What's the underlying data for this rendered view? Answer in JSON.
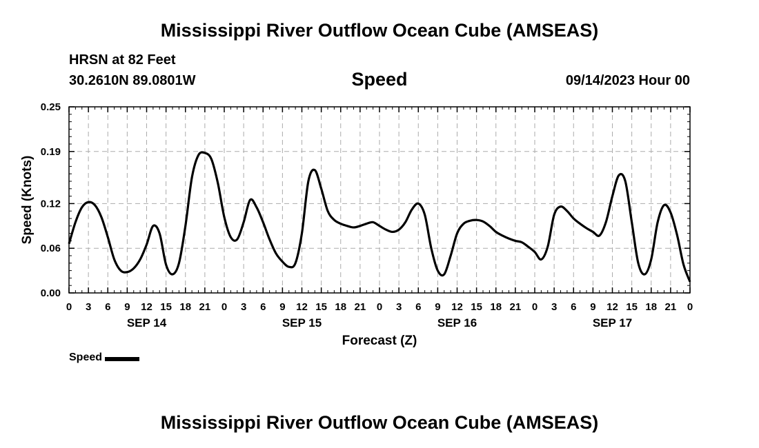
{
  "header": {
    "title": "Mississippi River Outflow Ocean Cube (AMSEAS)",
    "station": "HRSN at 82 Feet",
    "coords": "30.2610N  89.0801W",
    "variable": "Speed",
    "date": "09/14/2023 Hour 00"
  },
  "footer": {
    "title": "Mississippi River Outflow Ocean Cube (AMSEAS)"
  },
  "legend": {
    "label": "Speed",
    "color": "#000000"
  },
  "chart_data": {
    "type": "line",
    "title": "Speed",
    "xlabel": "Forecast (Z)",
    "ylabel": "Speed (Knots)",
    "xlim": [
      0,
      96
    ],
    "ylim": [
      0,
      0.25
    ],
    "yticks": [
      0.0,
      0.06,
      0.12,
      0.19,
      0.25
    ],
    "ytick_labels": [
      "0.00",
      "0.06",
      "0.12",
      "0.19",
      "0.25"
    ],
    "xticks": [
      0,
      3,
      6,
      9,
      12,
      15,
      18,
      21,
      24,
      27,
      30,
      33,
      36,
      39,
      42,
      45,
      48,
      51,
      54,
      57,
      60,
      63,
      66,
      69,
      72,
      75,
      78,
      81,
      84,
      87,
      90,
      93,
      96
    ],
    "xtick_labels": [
      "0",
      "3",
      "6",
      "9",
      "12",
      "15",
      "18",
      "21",
      "0",
      "3",
      "6",
      "9",
      "12",
      "15",
      "18",
      "21",
      "0",
      "3",
      "6",
      "9",
      "12",
      "15",
      "18",
      "21",
      "0",
      "3",
      "6",
      "9",
      "12",
      "15",
      "18",
      "21",
      "0"
    ],
    "day_labels": [
      {
        "x": 12,
        "label": "SEP 14"
      },
      {
        "x": 36,
        "label": "SEP 15"
      },
      {
        "x": 60,
        "label": "SEP 16"
      },
      {
        "x": 84,
        "label": "SEP 17"
      }
    ],
    "grid": true,
    "series": [
      {
        "name": "Speed",
        "color": "#000000",
        "x": [
          0,
          1,
          2,
          3,
          4,
          5,
          6,
          7,
          8,
          9,
          10,
          11,
          12,
          13,
          14,
          15,
          16,
          17,
          18,
          19,
          20,
          21,
          22,
          23,
          24,
          25,
          26,
          27,
          28,
          29,
          30,
          31,
          32,
          33,
          34,
          35,
          36,
          37,
          38,
          39,
          40,
          41,
          42,
          43,
          44,
          45,
          46,
          47,
          48,
          49,
          50,
          51,
          52,
          53,
          54,
          55,
          56,
          57,
          58,
          59,
          60,
          61,
          62,
          63,
          64,
          65,
          66,
          67,
          68,
          69,
          70,
          71,
          72,
          73,
          74,
          75,
          76,
          77,
          78,
          79,
          80,
          81,
          82,
          83,
          84,
          85,
          86,
          87,
          88,
          89,
          90,
          91,
          92,
          93,
          94,
          95,
          96
        ],
        "values": [
          0.066,
          0.095,
          0.115,
          0.122,
          0.118,
          0.102,
          0.075,
          0.045,
          0.03,
          0.028,
          0.033,
          0.045,
          0.065,
          0.09,
          0.08,
          0.038,
          0.025,
          0.04,
          0.09,
          0.155,
          0.185,
          0.188,
          0.18,
          0.148,
          0.102,
          0.075,
          0.072,
          0.095,
          0.125,
          0.115,
          0.095,
          0.072,
          0.053,
          0.042,
          0.035,
          0.04,
          0.08,
          0.15,
          0.165,
          0.14,
          0.11,
          0.098,
          0.093,
          0.09,
          0.088,
          0.09,
          0.093,
          0.095,
          0.09,
          0.085,
          0.082,
          0.085,
          0.095,
          0.112,
          0.12,
          0.105,
          0.06,
          0.03,
          0.025,
          0.05,
          0.08,
          0.093,
          0.097,
          0.098,
          0.096,
          0.09,
          0.082,
          0.077,
          0.073,
          0.07,
          0.068,
          0.062,
          0.055,
          0.045,
          0.062,
          0.105,
          0.116,
          0.11,
          0.1,
          0.093,
          0.087,
          0.082,
          0.077,
          0.095,
          0.13,
          0.158,
          0.15,
          0.095,
          0.04,
          0.025,
          0.045,
          0.095,
          0.118,
          0.108,
          0.078,
          0.038,
          0.015
        ]
      }
    ]
  }
}
